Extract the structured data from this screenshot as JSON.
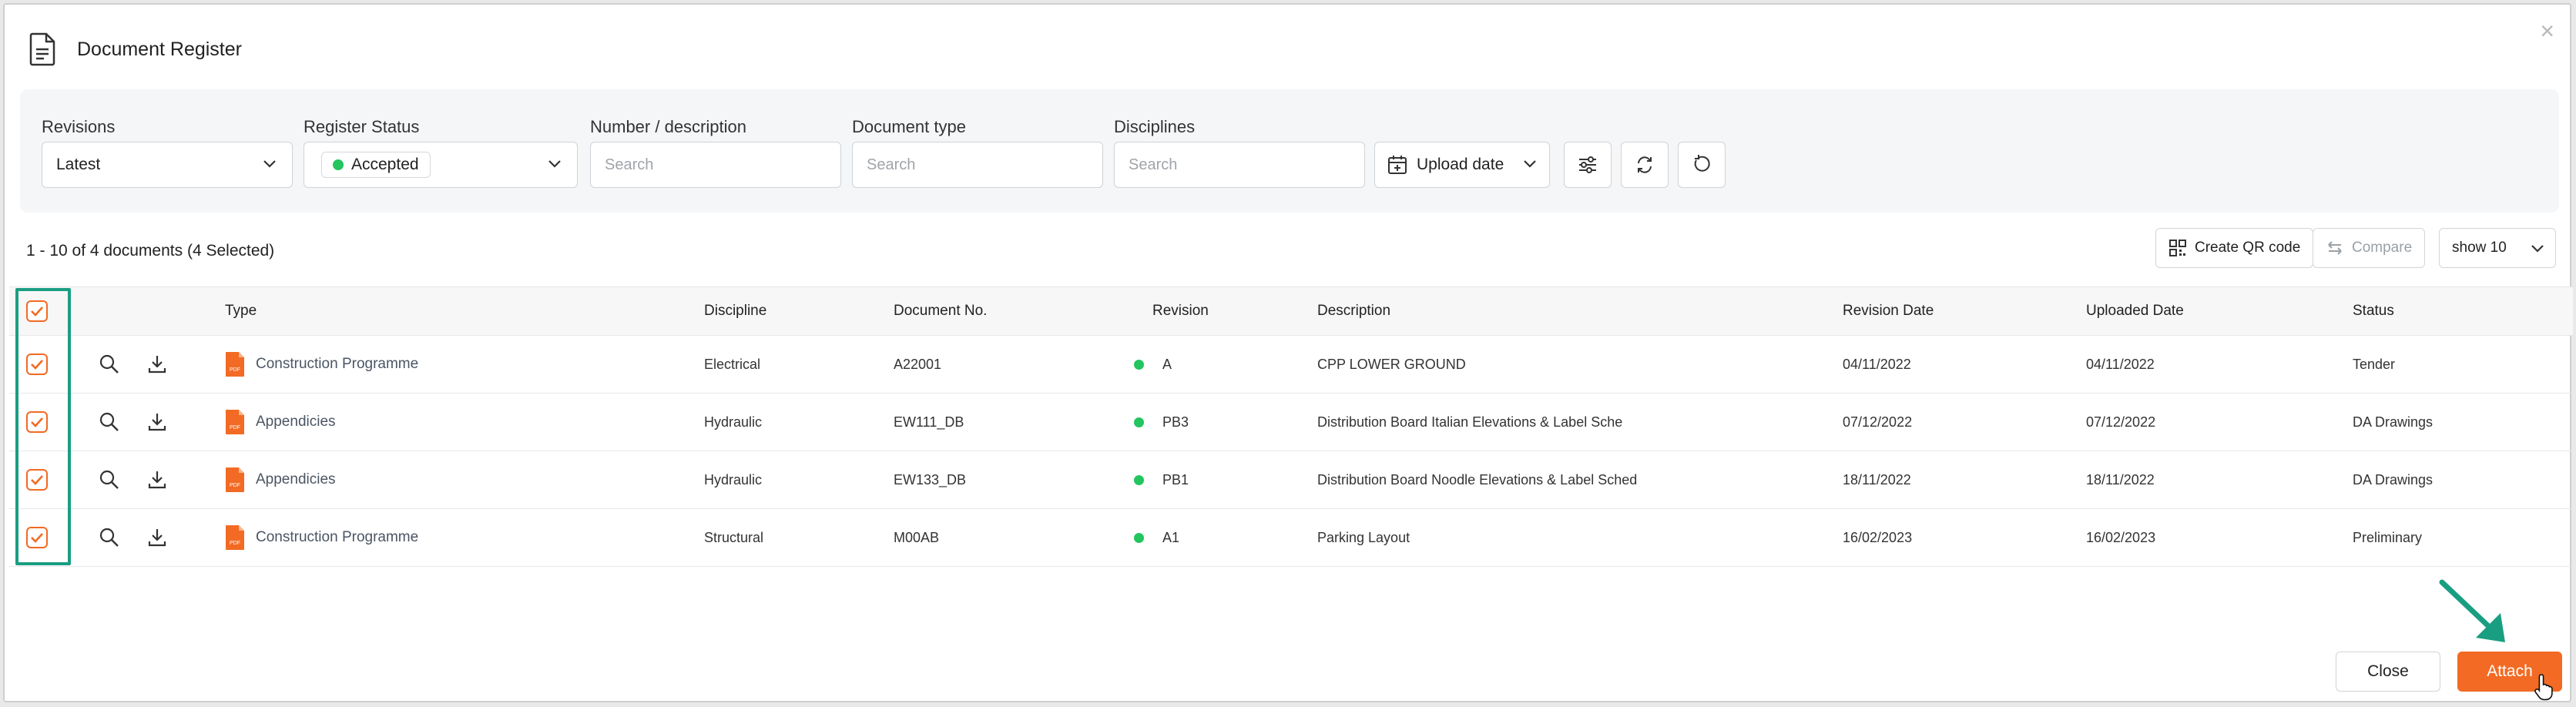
{
  "window": {
    "title": "Document Register",
    "close_glyph": "×"
  },
  "filters": {
    "revisions": {
      "label": "Revisions",
      "value": "Latest"
    },
    "register_status": {
      "label": "Register Status",
      "value": "Accepted",
      "status_color": "#22c55e"
    },
    "number_description": {
      "label": "Number / description",
      "placeholder": "Search"
    },
    "document_type": {
      "label": "Document type",
      "placeholder": "Search"
    },
    "disciplines": {
      "label": "Disciplines",
      "placeholder": "Search"
    },
    "date_filter": {
      "value": "Upload date"
    }
  },
  "toolbar": {
    "count_text": "1 - 10 of 4 documents (4 Selected)",
    "create_qr_label": "Create QR code",
    "compare_label": "Compare",
    "page_size_value": "show 10"
  },
  "table": {
    "columns": [
      "Type",
      "Discipline",
      "Document No.",
      "Revision",
      "Description",
      "Revision Date",
      "Uploaded Date",
      "Status"
    ],
    "rows": [
      {
        "type": "Construction Programme",
        "discipline": "Electrical",
        "doc_no": "A22001",
        "revision": "A",
        "description": "CPP LOWER GROUND",
        "revision_date": "04/11/2022",
        "uploaded_date": "04/11/2022",
        "status": "Tender",
        "file_badge": "PDF"
      },
      {
        "type": "Appendicies",
        "discipline": "Hydraulic",
        "doc_no": "EW111_DB",
        "revision": "PB3",
        "description": "Distribution Board Italian Elevations & Label Sche",
        "revision_date": "07/12/2022",
        "uploaded_date": "07/12/2022",
        "status": "DA Drawings",
        "file_badge": "PDF"
      },
      {
        "type": "Appendicies",
        "discipline": "Hydraulic",
        "doc_no": "EW133_DB",
        "revision": "PB1",
        "description": "Distribution Board Noodle Elevations & Label Sched",
        "revision_date": "18/11/2022",
        "uploaded_date": "18/11/2022",
        "status": "DA Drawings",
        "file_badge": "PDF"
      },
      {
        "type": "Construction Programme",
        "discipline": "Structural",
        "doc_no": "M00AB",
        "revision": "A1",
        "description": "Parking Layout",
        "revision_date": "16/02/2023",
        "uploaded_date": "16/02/2023",
        "status": "Preliminary",
        "file_badge": "PDF"
      }
    ]
  },
  "footer": {
    "close_label": "Close",
    "attach_label": "Attach"
  },
  "colors": {
    "accent": "#f26a23",
    "highlight": "#1a9e82",
    "status_green": "#22c55e"
  },
  "icons": {
    "header": "document-icon",
    "row_actions": [
      "search-icon",
      "download-icon"
    ],
    "filter_buttons": [
      "sliders-icon",
      "sync-icon",
      "reset-icon"
    ]
  }
}
